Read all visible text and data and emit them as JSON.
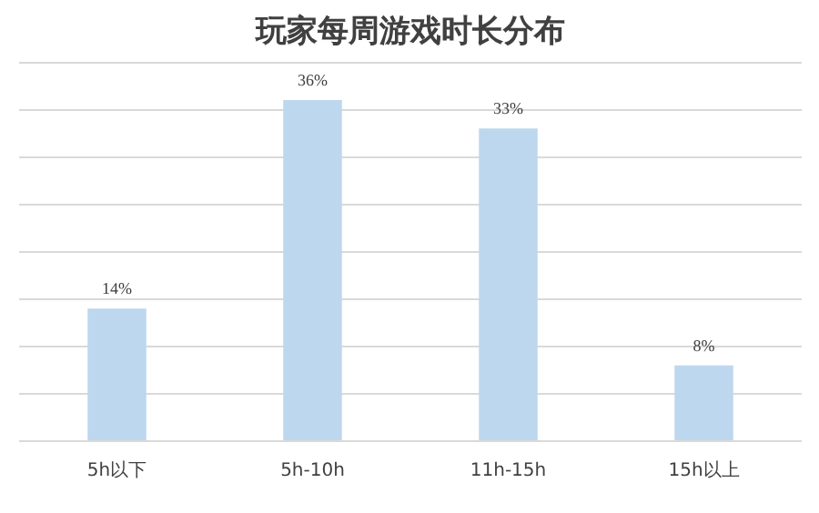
{
  "chart_data": {
    "type": "bar",
    "title": "玩家每周游戏时长分布",
    "categories": [
      "5h以下",
      "5h-10h",
      "11h-15h",
      "15h以上"
    ],
    "values": [
      14,
      36,
      33,
      8
    ],
    "color": "#bdd7ee",
    "value_labels": [
      "14%",
      "36%",
      "33%",
      "8%"
    ],
    "grid": "y",
    "tick_labels": "x"
  }
}
